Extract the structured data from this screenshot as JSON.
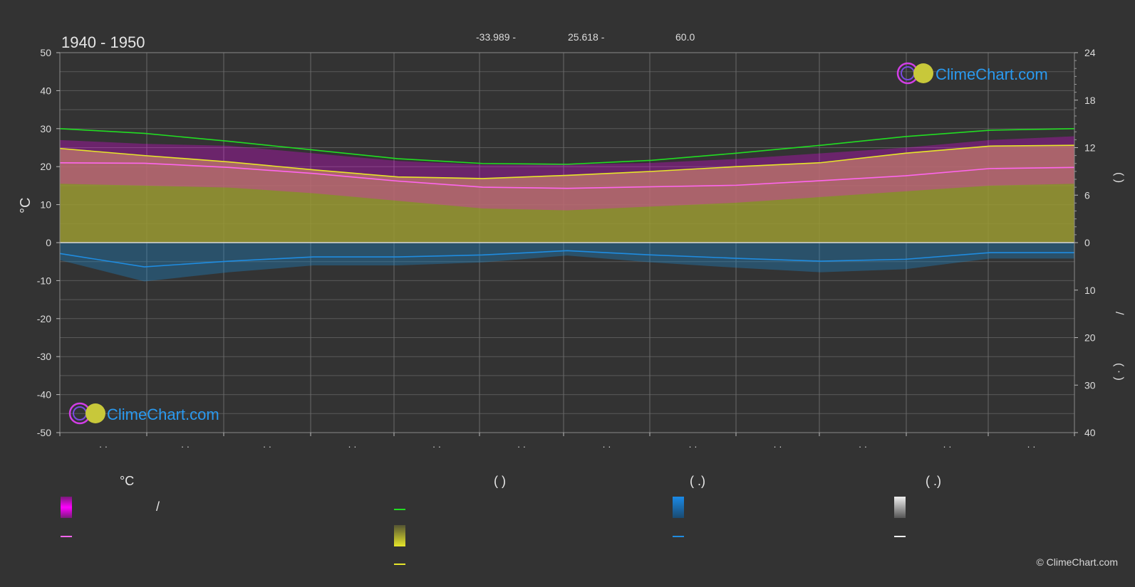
{
  "header": {
    "title": "1940 - 1950",
    "coord_lat": "-33.989 -",
    "coord_lon": "25.618 -",
    "elevation": "60.0"
  },
  "axes": {
    "left_unit": "°C",
    "right_top_label": "(   )",
    "right_bottom_label": "/",
    "right_bottom_label2": "( ·  )"
  },
  "brand": {
    "logo_text": "ClimeChart.com",
    "copyright": "© ClimeChart.com"
  },
  "legend": {
    "col1_header": "°C",
    "col1_item1": "/",
    "col2_header": "(         )",
    "col3_header": "(   .)",
    "col4_header": "(   .)"
  },
  "month_labels": [
    "· ·",
    "· ·",
    "· ·",
    "· ·",
    "· ·",
    "· ·",
    "· ·",
    "· ·",
    "· ·",
    "· ·",
    "· ·",
    "· ·"
  ],
  "colors": {
    "background": "#333333",
    "grid": "#5a5a5a",
    "daylight": "#22dd22",
    "sunshine": "#e6e62a",
    "temp_mean": "#ff66ee",
    "temp_range": "#ff00ff",
    "sunshine_fill": "#9a9a32",
    "precip": "#1a8ad0",
    "precip_line": "#1f8ce0",
    "brand_blue": "#2a9af0"
  },
  "chart_data": {
    "type": "line",
    "title": "1940 - 1950",
    "ylabel": "°C",
    "ylim": [
      -50,
      50
    ],
    "y2lim_top": [
      0,
      24
    ],
    "y2lim_bottom": [
      0,
      40
    ],
    "yticks": [
      50,
      40,
      30,
      20,
      10,
      0,
      -10,
      -20,
      -30,
      -40,
      -50
    ],
    "y2ticks_top": [
      24,
      18,
      12,
      6,
      0
    ],
    "y2ticks_bottom": [
      10,
      20,
      30,
      40
    ],
    "months": 12,
    "series": [
      {
        "key": "daylight",
        "values": [
          14.4,
          13.8,
          12.8,
          11.7,
          10.6,
          10.0,
          9.9,
          10.4,
          11.3,
          12.3,
          13.4,
          14.2,
          14.4
        ]
      },
      {
        "key": "sunshine",
        "values": [
          11.9,
          11.0,
          10.2,
          9.2,
          8.3,
          8.1,
          8.5,
          9.0,
          9.6,
          10.1,
          11.3,
          12.2,
          12.3
        ]
      },
      {
        "key": "temp_mean",
        "values": [
          21.0,
          20.9,
          19.8,
          18.2,
          16.2,
          14.6,
          14.3,
          14.7,
          15.1,
          16.3,
          17.6,
          19.5,
          19.8
        ]
      },
      {
        "key": "temp_max",
        "values": [
          27.0,
          26.0,
          25.5,
          23.5,
          21.5,
          20.5,
          20.5,
          21.0,
          22.0,
          23.5,
          25.0,
          27.0,
          28.0
        ]
      },
      {
        "key": "temp_min",
        "values": [
          15.5,
          15.0,
          14.5,
          13.0,
          11.0,
          9.0,
          8.5,
          9.5,
          10.5,
          12.0,
          13.5,
          15.0,
          15.5
        ]
      },
      {
        "key": "precip",
        "values": [
          2.3,
          5.1,
          3.9,
          3.0,
          3.0,
          2.6,
          1.7,
          2.6,
          3.3,
          3.9,
          3.5,
          2.1,
          2.1
        ]
      }
    ]
  }
}
